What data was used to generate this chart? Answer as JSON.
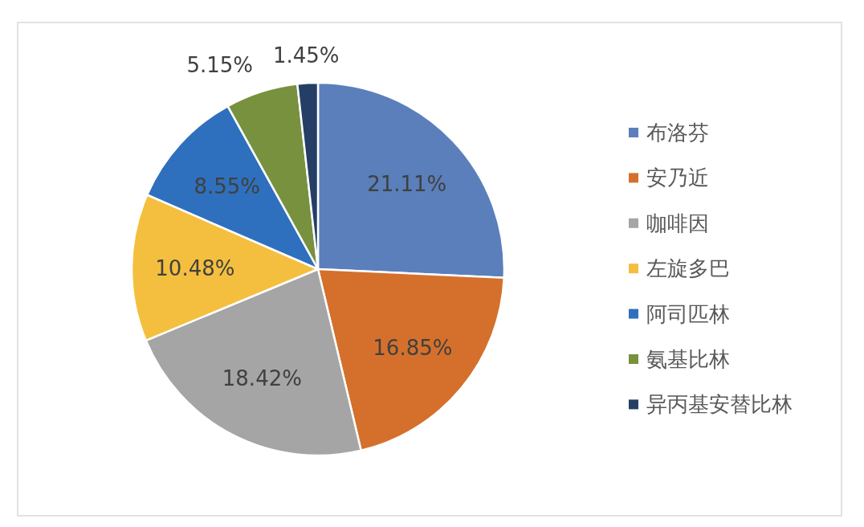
{
  "chart_data": {
    "type": "pie",
    "categories": [
      "布洛芬",
      "安乃近",
      "咖啡因",
      "左旋多巴",
      "阿司匹林",
      "氨基比林",
      "异丙基安替比林"
    ],
    "values": [
      21.11,
      16.85,
      18.42,
      10.48,
      8.55,
      5.15,
      1.45
    ],
    "value_labels": [
      "21.11%",
      "16.85%",
      "18.42%",
      "10.48%",
      "8.55%",
      "5.15%",
      "1.45%"
    ],
    "colors": [
      "#5a7fbb",
      "#d5702c",
      "#a5a5a5",
      "#f4bf3e",
      "#2f70be",
      "#77913e",
      "#253e66"
    ],
    "legend": "right"
  }
}
